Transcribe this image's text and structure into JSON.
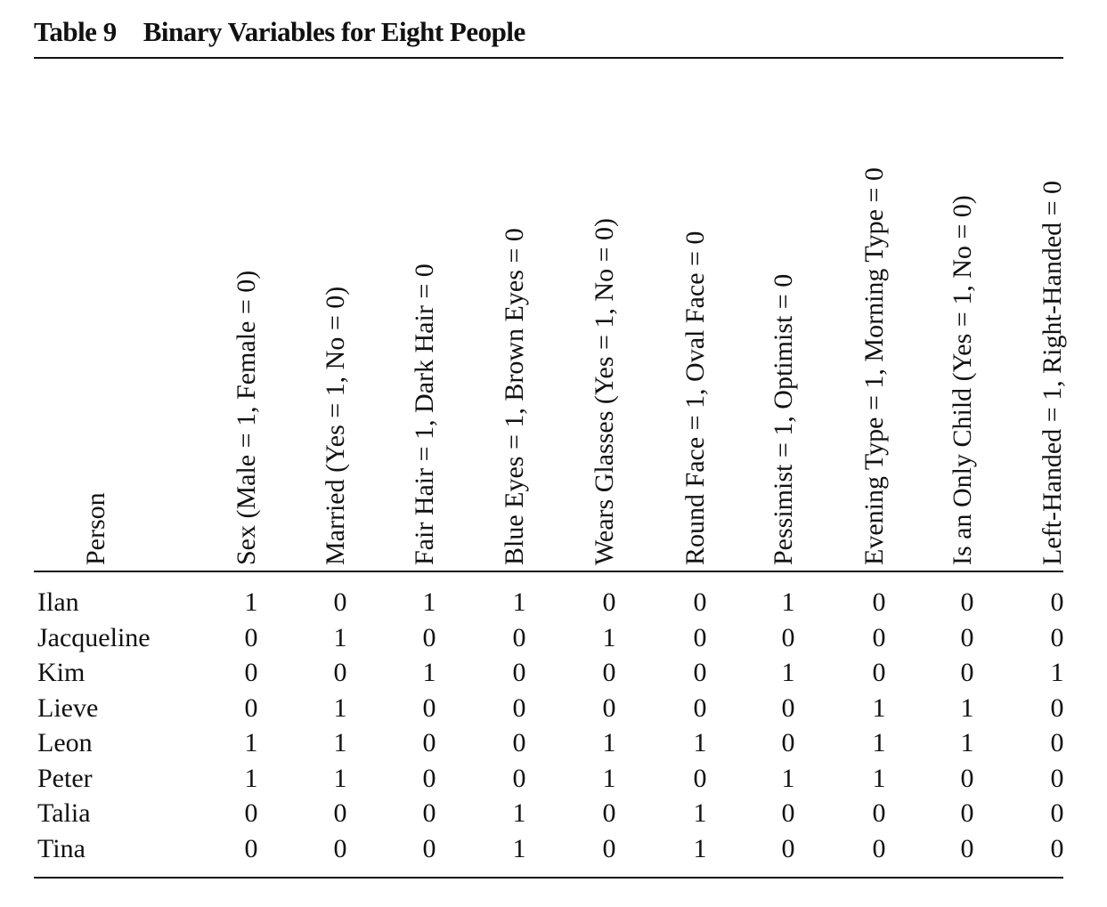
{
  "table": {
    "number": "Table 9",
    "title": "Binary Variables for Eight People",
    "person_header": "Person",
    "headers": [
      "Sex (Male = 1, Female = 0)",
      "Married (Yes = 1, No = 0)",
      "Fair Hair = 1, Dark Hair = 0",
      "Blue Eyes = 1, Brown Eyes = 0",
      "Wears Glasses (Yes = 1, No = 0)",
      "Round Face = 1, Oval Face = 0",
      "Pessimist = 1, Optimist = 0",
      "Evening Type = 1, Morning Type = 0",
      "Is an Only Child (Yes = 1, No = 0)",
      "Left-Handed = 1, Right-Handed = 0"
    ],
    "rows": [
      {
        "name": "Ilan",
        "values": [
          "1",
          "0",
          "1",
          "1",
          "0",
          "0",
          "1",
          "0",
          "0",
          "0"
        ]
      },
      {
        "name": "Jacqueline",
        "values": [
          "0",
          "1",
          "0",
          "0",
          "1",
          "0",
          "0",
          "0",
          "0",
          "0"
        ]
      },
      {
        "name": "Kim",
        "values": [
          "0",
          "0",
          "1",
          "0",
          "0",
          "0",
          "1",
          "0",
          "0",
          "1"
        ]
      },
      {
        "name": "Lieve",
        "values": [
          "0",
          "1",
          "0",
          "0",
          "0",
          "0",
          "0",
          "1",
          "1",
          "0"
        ]
      },
      {
        "name": "Leon",
        "values": [
          "1",
          "1",
          "0",
          "0",
          "1",
          "1",
          "0",
          "1",
          "1",
          "0"
        ]
      },
      {
        "name": "Peter",
        "values": [
          "1",
          "1",
          "0",
          "0",
          "1",
          "0",
          "1",
          "1",
          "0",
          "0"
        ]
      },
      {
        "name": "Talia",
        "values": [
          "0",
          "0",
          "0",
          "1",
          "0",
          "1",
          "0",
          "0",
          "0",
          "0"
        ]
      },
      {
        "name": "Tina",
        "values": [
          "0",
          "0",
          "0",
          "1",
          "0",
          "1",
          "0",
          "0",
          "0",
          "0"
        ]
      }
    ]
  }
}
